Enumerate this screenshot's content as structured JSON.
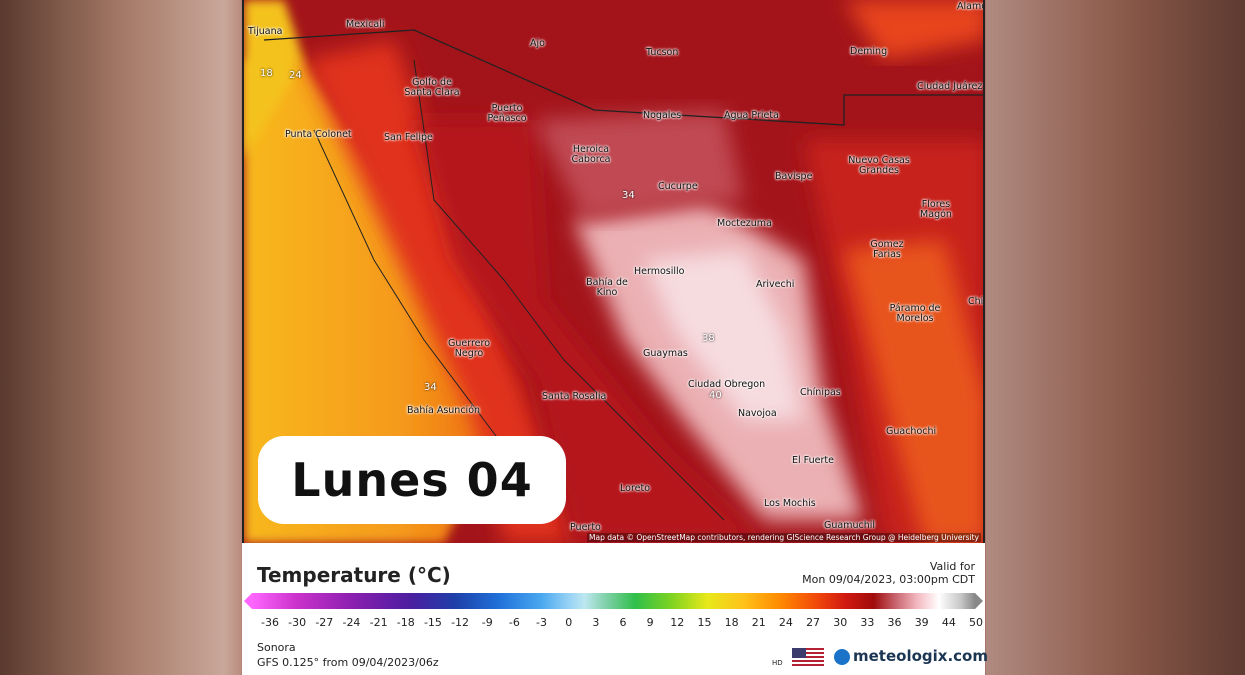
{
  "map": {
    "banner": "Lunes 04",
    "attribution": "Map data © OpenStreetMap contributors, rendering GIScience Research Group @ Heidelberg University",
    "cities": [
      "Tijuana",
      "Mexicali",
      "Ajo",
      "Tucson",
      "Deming",
      "Alamo",
      "Golfo de Santa Clara",
      "Puerto Peñasco",
      "Nogales",
      "Agua Prieta",
      "Ciudad Juárez",
      "Punta Colonet",
      "San Felipe",
      "Heroica Caborca",
      "Nuevo Casas Grandes",
      "Cucurpe",
      "Bavispe",
      "Flores Magón",
      "Moctezuma",
      "Gomez Farias",
      "Hermosillo",
      "Bahía de Kino",
      "Arivechi",
      "Chihu",
      "Páramo de Morelos",
      "Guerrero Negro",
      "Guaymas",
      "Ciudad Obregon",
      "Santa Rosalia",
      "Chínipas",
      "Bahía Asunción",
      "Navojoa",
      "Guachochi",
      "El Fuerte",
      "Loreto",
      "Los Mochis",
      "Guamuchil",
      "Puerto"
    ],
    "contours": [
      18,
      24,
      34,
      38,
      40,
      34
    ]
  },
  "legend": {
    "title": "Temperature (°C)",
    "valid_label": "Valid for",
    "valid_time": "Mon 09/04/2023, 03:00pm CDT",
    "ticks": [
      -36,
      -30,
      -27,
      -24,
      -21,
      -18,
      -15,
      -12,
      -9,
      -6,
      -3,
      0,
      3,
      6,
      9,
      12,
      15,
      18,
      21,
      24,
      27,
      30,
      33,
      36,
      39,
      44,
      50
    ],
    "region": "Sonora",
    "model": "GFS 0.125° from  09/04/2023/06z",
    "hd": "HD",
    "brand": "meteologix.com"
  }
}
